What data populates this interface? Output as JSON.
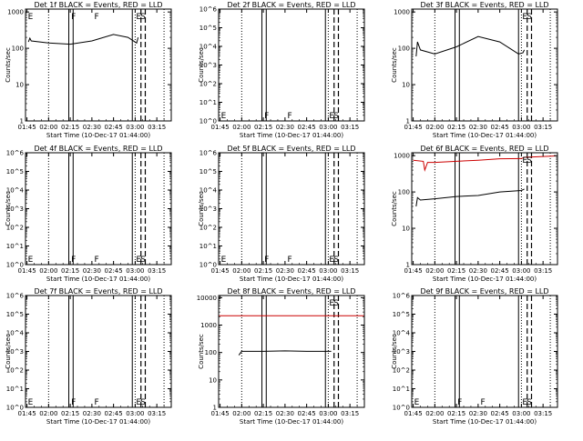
{
  "page": {
    "background": "#ffffff",
    "event_color": "#000000",
    "lld_color": "#cc0000"
  },
  "chart_data": [
    {
      "type": "line",
      "title": "Det 1f BLACK = Events, RED = LLD",
      "xlabel": "Start Time (10-Dec-17 01:44:00)",
      "ylabel": "Counts/sec",
      "y_scale": "log",
      "ylim": [
        1,
        1200
      ],
      "y_ticks": [
        1,
        10,
        100,
        1000
      ],
      "y_tick_labels": [
        "1",
        "10",
        "100",
        "1000"
      ],
      "x_range": [
        "01:44",
        "03:25"
      ],
      "x_tick_labels": [
        "01:45",
        "02:00",
        "02:15",
        "02:30",
        "02:45",
        "03:00",
        "03:15"
      ],
      "dotted_lines": [
        "02:00",
        "03:00",
        "03:20"
      ],
      "solid_lines": [
        "02:14",
        "02:17",
        "02:58"
      ],
      "dashed_lines": [
        "03:04",
        "03:07"
      ],
      "markers": [
        {
          "label": "E",
          "x": "01:45"
        },
        {
          "label": "F",
          "x": "02:15"
        },
        {
          "label": "F",
          "x": "02:31"
        },
        {
          "label": "E",
          "x": "03:00"
        },
        {
          "label": "S",
          "x": "03:03"
        }
      ],
      "marker_row": "top",
      "series": [
        {
          "color": "#000000",
          "x": [
            "01:46",
            "01:47",
            "01:48",
            "02:00",
            "02:15",
            "02:30",
            "02:45",
            "02:55",
            "03:01",
            "03:02"
          ],
          "values": [
            150,
            190,
            160,
            140,
            130,
            160,
            240,
            200,
            140,
            200
          ]
        }
      ]
    },
    {
      "type": "line",
      "title": "Det 2f BLACK = Events, RED = LLD",
      "xlabel": "Start Time (10-Dec-17 01:44:00)",
      "ylabel": "Counts/sec",
      "y_scale": "log",
      "ylim": [
        1,
        1000000
      ],
      "y_ticks": [
        1,
        10,
        100,
        1000,
        10000,
        100000,
        1000000
      ],
      "y_tick_labels": [
        "10^0",
        "10^1",
        "10^2",
        "10^3",
        "10^4",
        "10^5",
        "10^6"
      ],
      "x_range": [
        "01:44",
        "03:25"
      ],
      "x_tick_labels": [
        "01:45",
        "02:00",
        "02:15",
        "02:30",
        "02:45",
        "03:00",
        "03:15"
      ],
      "dotted_lines": [
        "02:00",
        "03:00",
        "03:20"
      ],
      "solid_lines": [
        "02:14",
        "02:17",
        "02:58"
      ],
      "dashed_lines": [
        "03:04",
        "03:07"
      ],
      "markers": [
        {
          "label": "E",
          "x": "01:45"
        },
        {
          "label": "F",
          "x": "02:15"
        },
        {
          "label": "F",
          "x": "02:31"
        },
        {
          "label": "E",
          "x": "03:00"
        },
        {
          "label": "S",
          "x": "03:03"
        }
      ],
      "marker_row": "bottom",
      "series": []
    },
    {
      "type": "line",
      "title": "Det 3f BLACK = Events, RED = LLD",
      "xlabel": "Start Time (10-Dec-17 01:44:00)",
      "ylabel": "Counts/sec",
      "y_scale": "log",
      "ylim": [
        1,
        1200
      ],
      "y_ticks": [
        1,
        10,
        100,
        1000
      ],
      "y_tick_labels": [
        "1",
        "10",
        "100",
        "1000"
      ],
      "x_range": [
        "01:44",
        "03:25"
      ],
      "x_tick_labels": [
        "01:45",
        "02:00",
        "02:15",
        "02:30",
        "02:45",
        "03:00",
        "03:15"
      ],
      "dotted_lines": [
        "02:00",
        "03:00",
        "03:20"
      ],
      "solid_lines": [
        "02:14",
        "02:17",
        "02:58"
      ],
      "dashed_lines": [
        "03:04",
        "03:07"
      ],
      "markers": [
        {
          "label": "E",
          "x": "03:00"
        },
        {
          "label": "S",
          "x": "03:03"
        }
      ],
      "marker_row": "top",
      "series": [
        {
          "color": "#000000",
          "x": [
            "01:47",
            "01:48",
            "01:50",
            "02:00",
            "02:15",
            "02:30",
            "02:45",
            "02:58",
            "03:01",
            "03:02"
          ],
          "values": [
            60,
            150,
            90,
            70,
            110,
            210,
            150,
            70,
            75,
            90
          ]
        }
      ]
    },
    {
      "type": "line",
      "title": "Det 4f BLACK = Events, RED = LLD",
      "xlabel": "Start Time (10-Dec-17 01:44:00)",
      "ylabel": "Counts/sec",
      "y_scale": "log",
      "ylim": [
        1,
        1000000
      ],
      "y_ticks": [
        1,
        10,
        100,
        1000,
        10000,
        100000,
        1000000
      ],
      "y_tick_labels": [
        "10^0",
        "10^1",
        "10^2",
        "10^3",
        "10^4",
        "10^5",
        "10^6"
      ],
      "x_range": [
        "01:44",
        "03:25"
      ],
      "x_tick_labels": [
        "01:45",
        "02:00",
        "02:15",
        "02:30",
        "02:45",
        "03:00",
        "03:15"
      ],
      "dotted_lines": [
        "02:00",
        "03:00",
        "03:20"
      ],
      "solid_lines": [
        "02:14",
        "02:17",
        "02:58"
      ],
      "dashed_lines": [
        "03:04",
        "03:07"
      ],
      "markers": [
        {
          "label": "E",
          "x": "01:45"
        },
        {
          "label": "F",
          "x": "02:15"
        },
        {
          "label": "F",
          "x": "02:31"
        },
        {
          "label": "E",
          "x": "03:00"
        },
        {
          "label": "S",
          "x": "03:03"
        }
      ],
      "marker_row": "bottom",
      "series": []
    },
    {
      "type": "line",
      "title": "Det 5f BLACK = Events, RED = LLD",
      "xlabel": "Start Time (10-Dec-17 01:44:00)",
      "ylabel": "Counts/sec",
      "y_scale": "log",
      "ylim": [
        1,
        1000000
      ],
      "y_ticks": [
        1,
        10,
        100,
        1000,
        10000,
        100000,
        1000000
      ],
      "y_tick_labels": [
        "10^0",
        "10^1",
        "10^2",
        "10^3",
        "10^4",
        "10^5",
        "10^6"
      ],
      "x_range": [
        "01:44",
        "03:25"
      ],
      "x_tick_labels": [
        "01:45",
        "02:00",
        "02:15",
        "02:30",
        "02:45",
        "03:00",
        "03:15"
      ],
      "dotted_lines": [
        "02:00",
        "03:00",
        "03:20"
      ],
      "solid_lines": [
        "02:14",
        "02:17",
        "02:58"
      ],
      "dashed_lines": [
        "03:04",
        "03:07"
      ],
      "markers": [
        {
          "label": "E",
          "x": "01:45"
        },
        {
          "label": "F",
          "x": "02:15"
        },
        {
          "label": "F",
          "x": "02:31"
        },
        {
          "label": "E",
          "x": "03:00"
        },
        {
          "label": "S",
          "x": "03:03"
        }
      ],
      "marker_row": "bottom",
      "series": []
    },
    {
      "type": "line",
      "title": "Det 6f BLACK = Events, RED = LLD",
      "xlabel": "Start Time (10-Dec-17 01:44:00)",
      "ylabel": "Counts/sec",
      "y_scale": "log",
      "ylim": [
        1,
        1200
      ],
      "y_ticks": [
        1,
        10,
        100,
        1000
      ],
      "y_tick_labels": [
        "1",
        "10",
        "100",
        "1000"
      ],
      "x_range": [
        "01:44",
        "03:25"
      ],
      "x_tick_labels": [
        "01:45",
        "02:00",
        "02:15",
        "02:30",
        "02:45",
        "03:00",
        "03:15"
      ],
      "dotted_lines": [
        "02:00",
        "03:00",
        "03:20"
      ],
      "solid_lines": [
        "02:14",
        "02:17",
        "02:58"
      ],
      "dashed_lines": [
        "03:04",
        "03:07"
      ],
      "markers": [
        {
          "label": "E",
          "x": "03:00"
        },
        {
          "label": "S",
          "x": "03:03"
        }
      ],
      "marker_row": "top",
      "series": [
        {
          "color": "#cc0000",
          "x": [
            "01:45",
            "01:52",
            "01:53",
            "01:55",
            "02:00",
            "02:15",
            "02:30",
            "02:45",
            "03:00",
            "03:02",
            "03:15",
            "03:24"
          ],
          "values": [
            750,
            700,
            400,
            650,
            650,
            700,
            750,
            820,
            830,
            900,
            950,
            980
          ]
        },
        {
          "color": "#000000",
          "x": [
            "01:47",
            "01:48",
            "01:50",
            "02:00",
            "02:15",
            "02:30",
            "02:45",
            "03:00",
            "03:02"
          ],
          "values": [
            40,
            70,
            60,
            65,
            75,
            80,
            100,
            110,
            120
          ]
        }
      ]
    },
    {
      "type": "line",
      "title": "Det 7f BLACK = Events, RED = LLD",
      "xlabel": "Start Time (10-Dec-17 01:44:00)",
      "ylabel": "Counts/sec",
      "y_scale": "log",
      "ylim": [
        1,
        1000000
      ],
      "y_ticks": [
        1,
        10,
        100,
        1000,
        10000,
        100000,
        1000000
      ],
      "y_tick_labels": [
        "10^0",
        "10^1",
        "10^2",
        "10^3",
        "10^4",
        "10^5",
        "10^6"
      ],
      "x_range": [
        "01:44",
        "03:25"
      ],
      "x_tick_labels": [
        "01:45",
        "02:00",
        "02:15",
        "02:30",
        "02:45",
        "03:00",
        "03:15"
      ],
      "dotted_lines": [
        "02:00",
        "03:00",
        "03:20"
      ],
      "solid_lines": [
        "02:14",
        "02:17",
        "02:58"
      ],
      "dashed_lines": [
        "03:04",
        "03:07"
      ],
      "markers": [
        {
          "label": "E",
          "x": "01:45"
        },
        {
          "label": "F",
          "x": "02:15"
        },
        {
          "label": "F",
          "x": "02:31"
        },
        {
          "label": "E",
          "x": "03:00"
        },
        {
          "label": "S",
          "x": "03:03"
        }
      ],
      "marker_row": "bottom",
      "series": []
    },
    {
      "type": "line",
      "title": "Det 8f BLACK = Events, RED = LLD",
      "xlabel": "Start Time (10-Dec-17 01:44:00)",
      "ylabel": "Counts/sec",
      "y_scale": "log",
      "ylim": [
        1,
        12000
      ],
      "y_ticks": [
        1,
        10,
        100,
        1000,
        10000
      ],
      "y_tick_labels": [
        "1",
        "10",
        "100",
        "1000",
        "10000"
      ],
      "x_range": [
        "01:44",
        "03:25"
      ],
      "x_tick_labels": [
        "01:45",
        "02:00",
        "02:15",
        "02:30",
        "02:45",
        "03:00",
        "03:15"
      ],
      "dotted_lines": [
        "02:00",
        "03:00",
        "03:20"
      ],
      "solid_lines": [
        "02:14",
        "02:17",
        "02:58"
      ],
      "dashed_lines": [
        "03:04",
        "03:07"
      ],
      "markers": [
        {
          "label": "E",
          "x": "03:00"
        },
        {
          "label": "S",
          "x": "03:03"
        }
      ],
      "marker_row": "top",
      "series": [
        {
          "color": "#cc0000",
          "x": [
            "01:44",
            "03:25"
          ],
          "values": [
            2200,
            2200
          ]
        },
        {
          "color": "#000000",
          "x": [
            "01:58",
            "02:00",
            "02:15",
            "02:30",
            "02:45",
            "03:02"
          ],
          "values": [
            80,
            110,
            110,
            115,
            110,
            110
          ]
        }
      ]
    },
    {
      "type": "line",
      "title": "Det 9f BLACK = Events, RED = LLD",
      "xlabel": "Start Time (10-Dec-17 01:44:00)",
      "ylabel": "Counts/sec",
      "y_scale": "log",
      "ylim": [
        1,
        1000000
      ],
      "y_ticks": [
        1,
        10,
        100,
        1000,
        10000,
        100000,
        1000000
      ],
      "y_tick_labels": [
        "10^0",
        "10^1",
        "10^2",
        "10^3",
        "10^4",
        "10^5",
        "10^6"
      ],
      "x_range": [
        "01:44",
        "03:25"
      ],
      "x_tick_labels": [
        "01:45",
        "02:00",
        "02:15",
        "02:30",
        "02:45",
        "03:00",
        "03:15"
      ],
      "dotted_lines": [
        "02:00",
        "03:00",
        "03:20"
      ],
      "solid_lines": [
        "02:14",
        "02:17",
        "02:58"
      ],
      "dashed_lines": [
        "03:04",
        "03:07"
      ],
      "markers": [
        {
          "label": "E",
          "x": "01:45"
        },
        {
          "label": "F",
          "x": "02:15"
        },
        {
          "label": "F",
          "x": "02:31"
        },
        {
          "label": "E",
          "x": "03:00"
        },
        {
          "label": "S",
          "x": "03:03"
        }
      ],
      "marker_row": "bottom",
      "series": []
    }
  ]
}
